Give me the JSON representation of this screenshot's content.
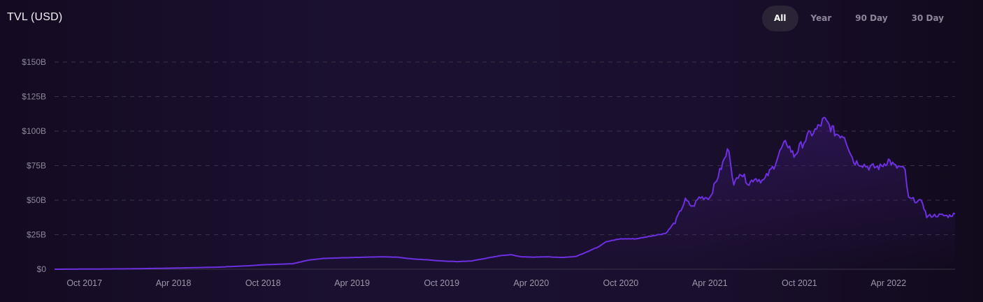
{
  "header": {
    "title": "TVL (USD)"
  },
  "range_tabs": [
    {
      "label": "All",
      "active": true
    },
    {
      "label": "Year",
      "active": false
    },
    {
      "label": "90 Day",
      "active": false
    },
    {
      "label": "30 Day",
      "active": false
    }
  ],
  "colors": {
    "line": "#6d2fe0",
    "area_top": "#3a1a6e",
    "grid": "#3a3347",
    "axis": "#3c3548"
  },
  "chart_data": {
    "type": "area",
    "title": "TVL (USD)",
    "xlabel": "",
    "ylabel": "",
    "ylim": [
      0,
      150
    ],
    "y_unit": "USD billions",
    "xlim": [
      "2017-08-01",
      "2022-08-15"
    ],
    "grid": true,
    "y_ticks": [
      {
        "value": 0,
        "label": "$0"
      },
      {
        "value": 25,
        "label": "$25B"
      },
      {
        "value": 50,
        "label": "$50B"
      },
      {
        "value": 75,
        "label": "$75B"
      },
      {
        "value": 100,
        "label": "$100B"
      },
      {
        "value": 125,
        "label": "$125B"
      },
      {
        "value": 150,
        "label": "$150B"
      }
    ],
    "x_ticks": [
      {
        "value": "2017-10-01",
        "label": "Oct 2017"
      },
      {
        "value": "2018-04-01",
        "label": "Apr 2018"
      },
      {
        "value": "2018-10-01",
        "label": "Oct 2018"
      },
      {
        "value": "2019-04-01",
        "label": "Apr 2019"
      },
      {
        "value": "2019-10-01",
        "label": "Oct 2019"
      },
      {
        "value": "2020-04-01",
        "label": "Apr 2020"
      },
      {
        "value": "2020-10-01",
        "label": "Oct 2020"
      },
      {
        "value": "2021-04-01",
        "label": "Apr 2021"
      },
      {
        "value": "2021-10-01",
        "label": "Oct 2021"
      },
      {
        "value": "2022-04-01",
        "label": "Apr 2022"
      }
    ],
    "series": [
      {
        "points": [
          [
            "2017-08-01",
            0.0
          ],
          [
            "2017-10-01",
            0.1
          ],
          [
            "2018-01-01",
            0.3
          ],
          [
            "2018-04-01",
            0.8
          ],
          [
            "2018-07-01",
            1.5
          ],
          [
            "2018-09-01",
            2.5
          ],
          [
            "2018-10-01",
            3.2
          ],
          [
            "2018-12-01",
            4.0
          ],
          [
            "2019-01-01",
            6.5
          ],
          [
            "2019-02-01",
            7.8
          ],
          [
            "2019-04-01",
            8.5
          ],
          [
            "2019-06-01",
            9.0
          ],
          [
            "2019-07-01",
            8.8
          ],
          [
            "2019-08-01",
            7.5
          ],
          [
            "2019-09-01",
            6.8
          ],
          [
            "2019-10-01",
            6.0
          ],
          [
            "2019-11-01",
            5.5
          ],
          [
            "2019-12-01",
            6.0
          ],
          [
            "2020-01-01",
            8.0
          ],
          [
            "2020-02-01",
            10.0
          ],
          [
            "2020-02-20",
            10.5
          ],
          [
            "2020-03-12",
            9.0
          ],
          [
            "2020-04-01",
            8.8
          ],
          [
            "2020-05-01",
            9.0
          ],
          [
            "2020-06-01",
            8.5
          ],
          [
            "2020-07-01",
            9.2
          ],
          [
            "2020-07-20",
            12.0
          ],
          [
            "2020-08-15",
            16.0
          ],
          [
            "2020-09-01",
            20.0
          ],
          [
            "2020-10-01",
            22.0
          ],
          [
            "2020-11-01",
            22.0
          ],
          [
            "2020-12-01",
            24.0
          ],
          [
            "2021-01-01",
            26.0
          ],
          [
            "2021-01-20",
            34.0
          ],
          [
            "2021-02-10",
            50.0
          ],
          [
            "2021-02-25",
            45.0
          ],
          [
            "2021-03-10",
            52.0
          ],
          [
            "2021-04-01",
            52.0
          ],
          [
            "2021-04-15",
            65.0
          ],
          [
            "2021-05-10",
            88.0
          ],
          [
            "2021-05-20",
            60.0
          ],
          [
            "2021-06-01",
            71.0
          ],
          [
            "2021-06-20",
            62.0
          ],
          [
            "2021-07-01",
            66.0
          ],
          [
            "2021-07-20",
            64.0
          ],
          [
            "2021-08-10",
            75.0
          ],
          [
            "2021-08-25",
            87.0
          ],
          [
            "2021-09-05",
            92.0
          ],
          [
            "2021-09-20",
            82.0
          ],
          [
            "2021-10-01",
            88.0
          ],
          [
            "2021-10-20",
            97.0
          ],
          [
            "2021-11-05",
            101.0
          ],
          [
            "2021-11-20",
            108.0
          ],
          [
            "2021-12-01",
            104.0
          ],
          [
            "2021-12-15",
            98.0
          ],
          [
            "2022-01-01",
            97.0
          ],
          [
            "2022-01-20",
            78.0
          ],
          [
            "2022-02-01",
            77.0
          ],
          [
            "2022-02-20",
            74.0
          ],
          [
            "2022-03-15",
            74.0
          ],
          [
            "2022-04-01",
            79.0
          ],
          [
            "2022-04-15",
            74.0
          ],
          [
            "2022-04-25",
            74.0
          ],
          [
            "2022-05-05",
            71.0
          ],
          [
            "2022-05-12",
            51.0
          ],
          [
            "2022-05-25",
            50.0
          ],
          [
            "2022-06-10",
            48.0
          ],
          [
            "2022-06-18",
            38.0
          ],
          [
            "2022-07-01",
            39.0
          ],
          [
            "2022-07-20",
            39.0
          ],
          [
            "2022-08-01",
            38.5
          ],
          [
            "2022-08-15",
            40.0
          ]
        ]
      }
    ]
  }
}
